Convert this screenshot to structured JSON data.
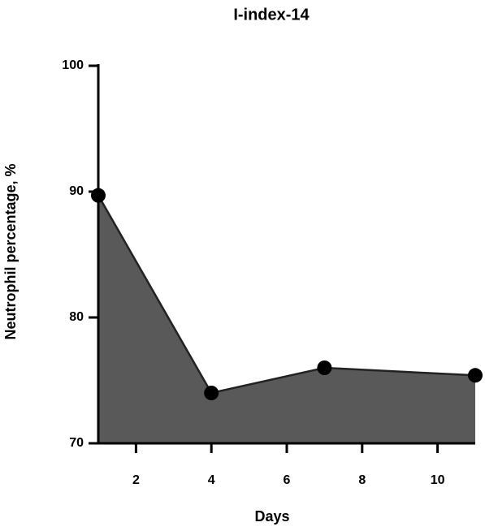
{
  "chart_data": {
    "type": "area",
    "title": "I-index-14",
    "x_label": "Days",
    "y_label": "Neutrophil percentage, %",
    "x": [
      1,
      4,
      7,
      11
    ],
    "series": [
      {
        "color": "#595959",
        "line_color": "#222222",
        "values": [
          89.7,
          74,
          76,
          75.4
        ]
      }
    ],
    "xlim": [
      1,
      11
    ],
    "xticks": [
      2,
      4,
      6,
      8,
      10
    ],
    "ylim": [
      70,
      100
    ],
    "yticks": [
      70,
      80,
      90,
      100
    ]
  }
}
